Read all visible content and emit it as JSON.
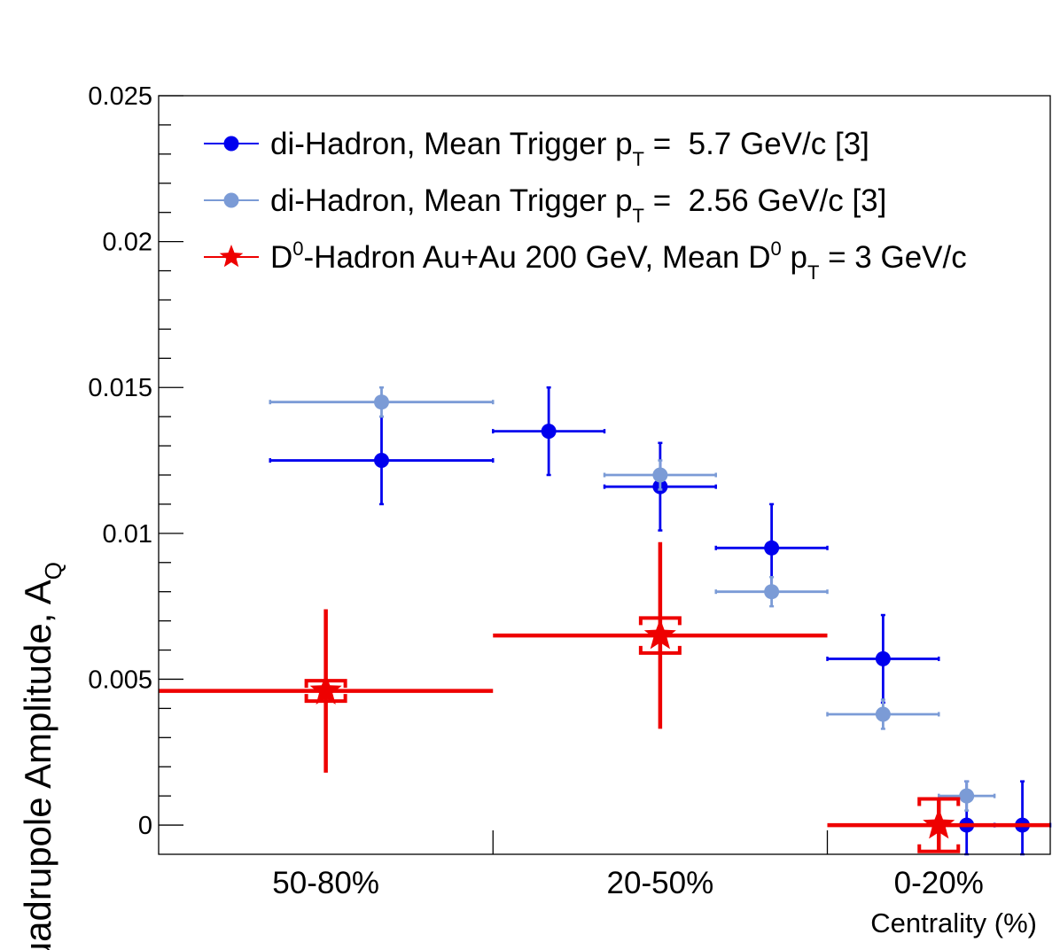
{
  "chart_data": {
    "type": "scatter",
    "ylabel_main": "Quadrupole Amplitude, A",
    "ylabel_sub": "Q",
    "xlabel": "Centrality (%)",
    "ylim": [
      -0.001,
      0.025
    ],
    "xlim": [
      0,
      80
    ],
    "y_ticks": [
      0,
      0.005,
      0.01,
      0.015,
      0.02,
      0.025
    ],
    "y_tick_labels": [
      "0",
      "0.005",
      "0.01",
      "0.015",
      "0.02",
      "0.025"
    ],
    "categories": [
      "50-80%",
      "20-50%",
      "0-20%"
    ],
    "category_bounds": [
      [
        0,
        30
      ],
      [
        30,
        60
      ],
      [
        60,
        80
      ]
    ],
    "grid": false,
    "legend_position": "top-left",
    "legend": [
      {
        "pre": "di-Hadron, Mean Trigger p",
        "sub1": "T",
        "mid": " =  5.7 GeV/c [3]"
      },
      {
        "pre": "di-Hadron, Mean Trigger p",
        "sub1": "T",
        "mid": " =  2.56 GeV/c [3]"
      },
      {
        "pre": "D",
        "sup1": "0",
        "mid": "-Hadron Au+Au 200 GeV, Mean D",
        "sup2": "0",
        "mid2": " p",
        "sub2": "T",
        "post": " = 3 GeV/c"
      }
    ],
    "series": [
      {
        "color": "#0000ee",
        "marker": "circle",
        "points": [
          {
            "x": 20,
            "y": 0.0125,
            "xerr": 10,
            "yerr": 0.0015
          },
          {
            "x": 35,
            "y": 0.0135,
            "xerr": 5,
            "yerr": 0.0015
          },
          {
            "x": 45,
            "y": 0.0116,
            "xerr": 5,
            "yerr": 0.0015
          },
          {
            "x": 55,
            "y": 0.0095,
            "xerr": 5,
            "yerr": 0.0015
          },
          {
            "x": 65,
            "y": 0.0057,
            "xerr": 5,
            "yerr": 0.0015
          },
          {
            "x": 72.5,
            "y": 0.0,
            "xerr": 2.5,
            "yerr": 0.0015
          },
          {
            "x": 77.5,
            "y": 0.0,
            "xerr": 2.5,
            "yerr": 0.0015
          }
        ]
      },
      {
        "color": "#7b9bd6",
        "marker": "circle",
        "points": [
          {
            "x": 20,
            "y": 0.0145,
            "xerr": 10,
            "yerr": 0.0005
          },
          {
            "x": 45,
            "y": 0.012,
            "xerr": 5,
            "yerr": 0.0005
          },
          {
            "x": 55,
            "y": 0.008,
            "xerr": 5,
            "yerr": 0.0005
          },
          {
            "x": 65,
            "y": 0.0038,
            "xerr": 5,
            "yerr": 0.0005
          },
          {
            "x": 72.5,
            "y": 0.001,
            "xerr": 2.5,
            "yerr": 0.0005
          }
        ]
      },
      {
        "color": "#ee0000",
        "marker": "star",
        "points": [
          {
            "x": 15,
            "y": 0.0046,
            "xerr": 15,
            "yerr": 0.0028,
            "syst": 0.00035
          },
          {
            "x": 45,
            "y": 0.0065,
            "xerr": 15,
            "yerr": 0.0032,
            "syst": 0.0006
          },
          {
            "x": 70,
            "y": 0.0,
            "xerr": 10,
            "yerr": 0.0009,
            "syst": 0.0009
          }
        ]
      }
    ]
  }
}
